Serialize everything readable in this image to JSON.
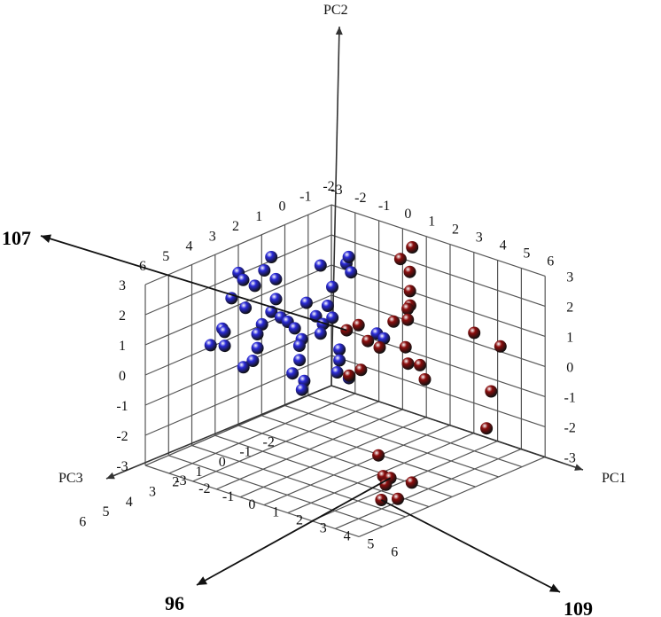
{
  "chart_data": {
    "type": "scatter",
    "title": "",
    "subtitle": "",
    "axes": {
      "x": {
        "label": "PC1",
        "range": [
          -3,
          6
        ],
        "ticks": [
          "-3",
          "-2",
          "-1",
          "0",
          "1",
          "2",
          "3",
          "4",
          "5",
          "6"
        ]
      },
      "y": {
        "label": "PC2",
        "range": [
          -3,
          3
        ],
        "ticks": [
          "-3",
          "-2",
          "-1",
          "0",
          "1",
          "2",
          "3"
        ]
      },
      "z": {
        "label": "PC3",
        "range": [
          -2,
          6
        ],
        "ticks": [
          "-2",
          "-1",
          "0",
          "1",
          "2",
          "3",
          "4",
          "5",
          "6"
        ]
      }
    },
    "grid": true,
    "legend": "none",
    "series": [
      {
        "color": "#2a2ad8",
        "points": [
          [
            -2.6,
            2.3,
            2.4
          ],
          [
            -2.6,
            2.0,
            2.2
          ],
          [
            -2.5,
            1.7,
            1.8
          ],
          [
            -2.7,
            1.5,
            2.6
          ],
          [
            -2.5,
            1.1,
            2.2
          ],
          [
            -2.4,
            0.8,
            3.3
          ],
          [
            -2.5,
            0.6,
            3.1
          ],
          [
            -2.6,
            0.3,
            3.6
          ],
          [
            -2.4,
            0.2,
            3.2
          ],
          [
            -2.2,
            2.6,
            1.4
          ],
          [
            -2.3,
            2.2,
            1.6
          ],
          [
            -2.2,
            1.8,
            1.2
          ],
          [
            -2.1,
            1.2,
            1.3
          ],
          [
            -2.0,
            0.9,
            1.6
          ],
          [
            -2.2,
            0.5,
            1.8
          ],
          [
            -2.1,
            0.3,
            2.1
          ],
          [
            -2.0,
            -0.1,
            2.2
          ],
          [
            -1.9,
            -0.4,
            2.5
          ],
          [
            -2.1,
            -0.6,
            2.7
          ],
          [
            -1.8,
            0.7,
            1.4
          ],
          [
            -1.9,
            0.4,
            1.0
          ],
          [
            -1.7,
            0.2,
            0.9
          ],
          [
            -1.6,
            -0.2,
            0.7
          ],
          [
            -1.8,
            -0.5,
            0.6
          ],
          [
            -1.5,
            -0.8,
            0.9
          ],
          [
            -1.6,
            -1.2,
            1.1
          ],
          [
            -1.4,
            -1.5,
            0.8
          ],
          [
            -1.3,
            -1.7,
            1.0
          ],
          [
            -1.5,
            1.0,
            0.6
          ],
          [
            -1.2,
            0.6,
            0.5
          ],
          [
            -1.1,
            0.3,
            0.3
          ],
          [
            -1.3,
            -0.1,
            0.2
          ],
          [
            -1.0,
            0.9,
            0.2
          ],
          [
            -0.9,
            0.5,
            0.1
          ],
          [
            -1.1,
            1.4,
            -0.1
          ],
          [
            -0.8,
            -0.6,
            -0.1
          ],
          [
            -0.7,
            -0.9,
            0.0
          ],
          [
            -0.9,
            2.1,
            -0.5
          ],
          [
            -0.8,
            1.8,
            -0.6
          ],
          [
            -0.6,
            -1.2,
            0.2
          ],
          [
            -0.7,
            2.4,
            -0.4
          ],
          [
            -0.5,
            -1.5,
            -0.2
          ],
          [
            -0.3,
            -0.3,
            -1.2
          ],
          [
            -0.2,
            -0.5,
            -1.4
          ],
          [
            -1.4,
            2.1,
            0.1
          ]
        ]
      },
      {
        "color": "#8b0d0d",
        "points": [
          [
            0.6,
            2.6,
            -1.8
          ],
          [
            0.3,
            2.2,
            -1.6
          ],
          [
            0.8,
            1.3,
            -1.5
          ],
          [
            1.1,
            1.0,
            -1.2
          ],
          [
            0.9,
            0.8,
            -1.3
          ],
          [
            1.0,
            0.5,
            -1.2
          ],
          [
            0.6,
            0.4,
            -1.0
          ],
          [
            1.3,
            -0.2,
            -0.8
          ],
          [
            1.6,
            -0.6,
            -0.6
          ],
          [
            0.7,
            -0.2,
            -0.3
          ],
          [
            0.4,
            0.0,
            -0.1
          ],
          [
            2.3,
            -0.4,
            -0.4
          ],
          [
            2.7,
            -0.7,
            -0.2
          ],
          [
            3.8,
            0.8,
            -1.2
          ],
          [
            5.0,
            0.7,
            -1.1
          ],
          [
            5.1,
            -0.6,
            -0.6
          ],
          [
            5.2,
            -1.7,
            -0.3
          ],
          [
            0.3,
            0.6,
            0.2
          ],
          [
            0.5,
            -0.8,
            0.3
          ],
          [
            0.2,
            -1.0,
            0.5
          ],
          [
            2.8,
            -2.5,
            1.9
          ],
          [
            3.4,
            -2.9,
            2.3
          ],
          [
            3.5,
            -3.0,
            2.1
          ],
          [
            3.6,
            -3.1,
            2.4
          ],
          [
            4.6,
            -2.8,
            2.3
          ],
          [
            4.5,
            -3.2,
            2.8
          ],
          [
            4.0,
            -3.3,
            3.0
          ],
          [
            -0.2,
            0.3,
            0.2
          ],
          [
            0.4,
            1.7,
            -1.9
          ]
        ]
      }
    ],
    "annotations": [
      {
        "label": "107",
        "target": [
          -0.2,
          0.3,
          0.2
        ]
      },
      {
        "label": "96",
        "target": [
          3.5,
          -3.0,
          2.1
        ]
      },
      {
        "label": "109",
        "target": [
          4.0,
          -3.3,
          3.0
        ]
      }
    ]
  }
}
